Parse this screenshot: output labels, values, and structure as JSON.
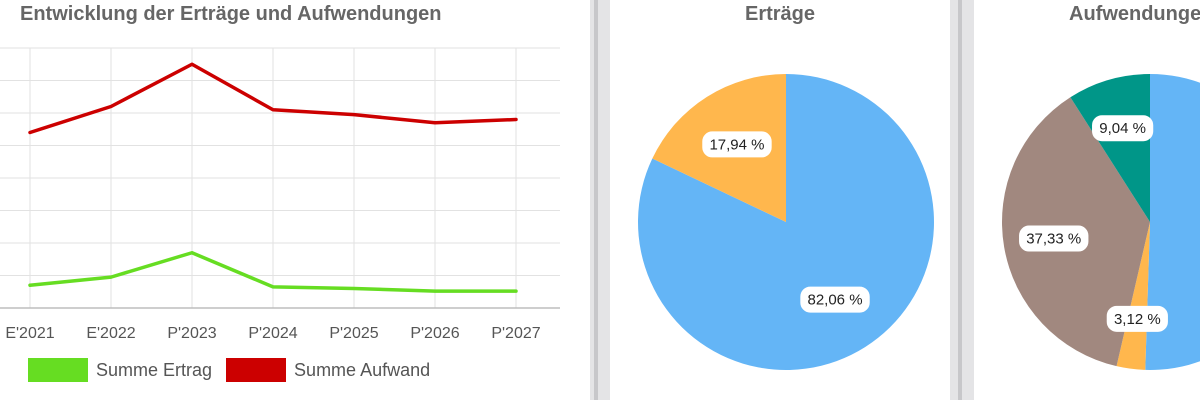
{
  "colors": {
    "ertrag": "#66dd22",
    "aufwand": "#cc0000",
    "pie_blue": "#64b5f6",
    "pie_orange": "#ffb74d",
    "pie_brown": "#a1887f",
    "pie_teal": "#009688"
  },
  "chart_data": [
    {
      "type": "line",
      "title": "Entwicklung der Erträge und Aufwendungen",
      "categories": [
        "E'2021",
        "E'2022",
        "P'2023",
        "P'2024",
        "P'2025",
        "P'2026",
        "P'2027"
      ],
      "series": [
        {
          "name": "Summe Ertrag",
          "color": "#66dd22",
          "values": [
            0.7,
            0.95,
            1.7,
            0.65,
            0.6,
            0.52,
            0.52
          ]
        },
        {
          "name": "Summe Aufwand",
          "color": "#cc0000",
          "values": [
            5.4,
            6.2,
            7.5,
            6.1,
            5.95,
            5.7,
            5.8
          ]
        }
      ],
      "ylim": [
        0,
        8
      ],
      "grid": true,
      "legend_position": "bottom-left"
    },
    {
      "type": "pie",
      "title": "Erträge",
      "slices": [
        {
          "value": 82.06,
          "label": "82,06 %",
          "color": "#64b5f6"
        },
        {
          "value": 17.94,
          "label": "17,94 %",
          "color": "#ffb74d"
        }
      ]
    },
    {
      "type": "pie",
      "title": "Aufwendungen",
      "slices": [
        {
          "value": 50.51,
          "label": "",
          "color": "#64b5f6"
        },
        {
          "value": 3.12,
          "label": "3,12 %",
          "color": "#ffb74d"
        },
        {
          "value": 37.33,
          "label": "37,33 %",
          "color": "#a1887f"
        },
        {
          "value": 9.04,
          "label": "9,04 %",
          "color": "#009688"
        }
      ]
    }
  ]
}
